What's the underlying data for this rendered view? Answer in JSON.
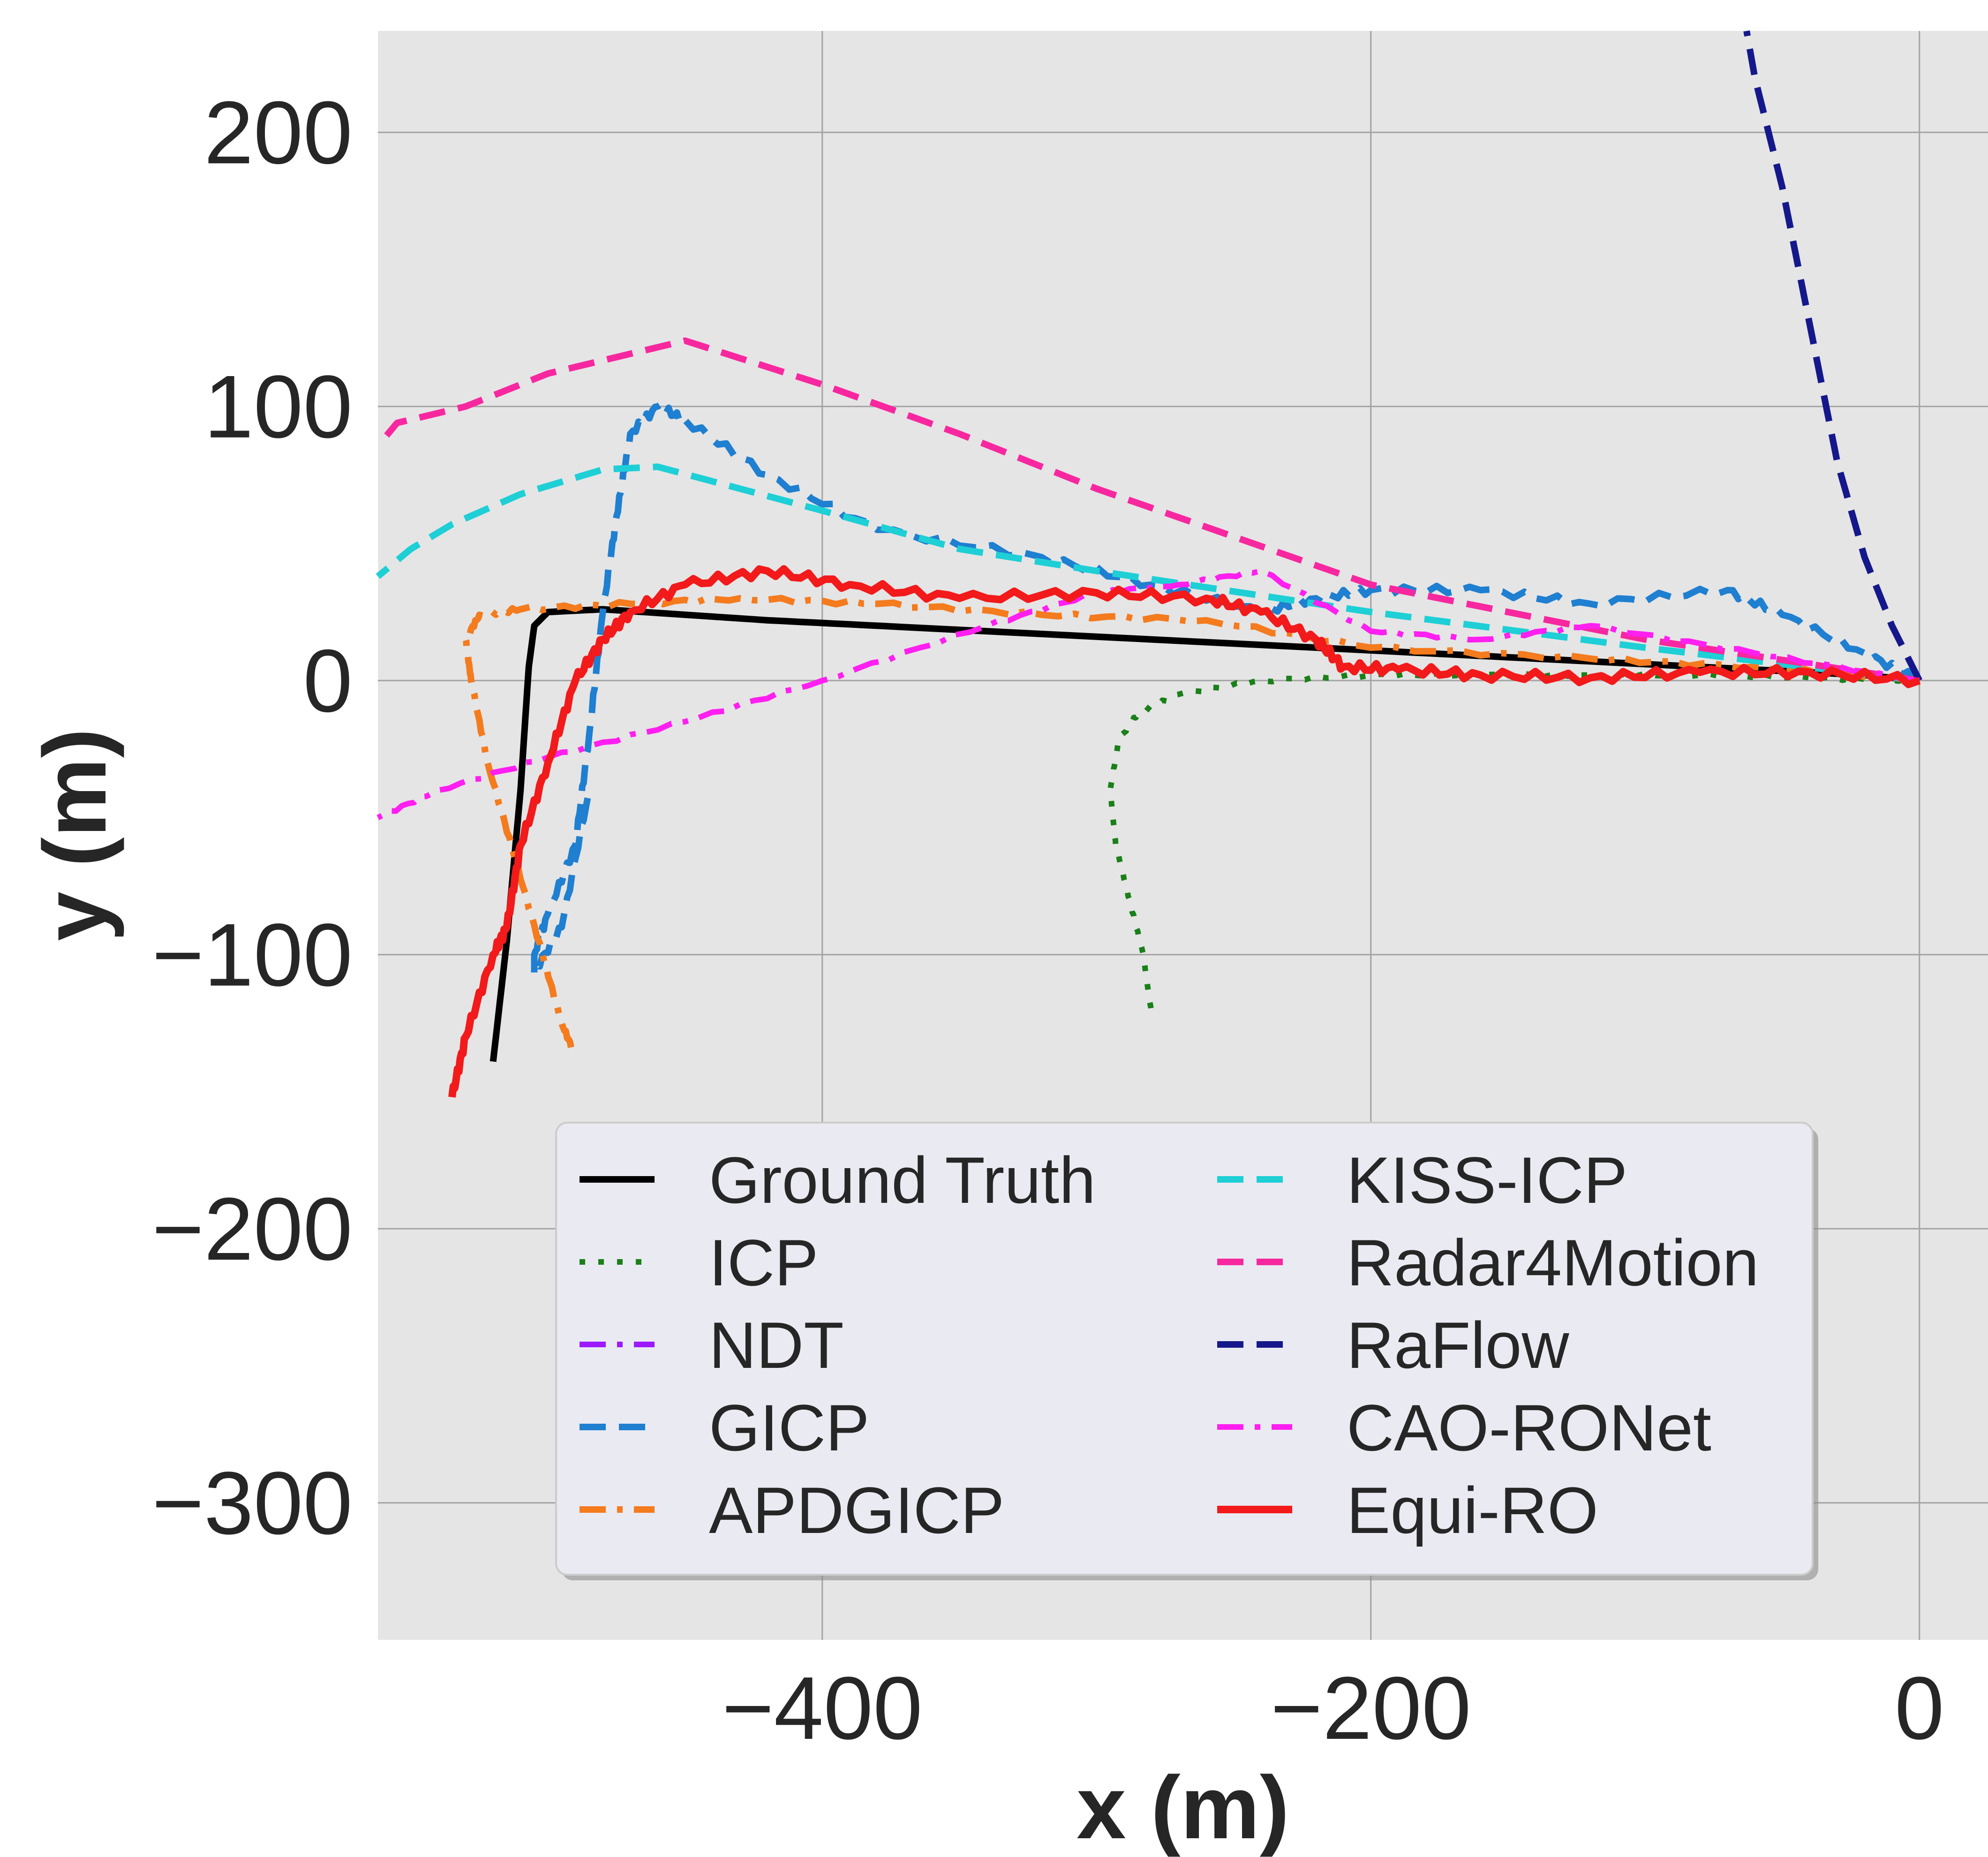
{
  "chart_data": {
    "type": "line",
    "title": "",
    "xlabel": "x (m)",
    "ylabel": "y (m)",
    "xlim": [
      -562,
      25
    ],
    "ylim": [
      -350,
      237
    ],
    "xticks": [
      {
        "value": -400,
        "label": "−400"
      },
      {
        "value": -200,
        "label": "−200"
      },
      {
        "value": 0,
        "label": "0"
      }
    ],
    "yticks": [
      {
        "value": 200,
        "label": "200"
      },
      {
        "value": 100,
        "label": "100"
      },
      {
        "value": 0,
        "label": "0"
      },
      {
        "value": -100,
        "label": "−100"
      },
      {
        "value": -200,
        "label": "−200"
      },
      {
        "value": -300,
        "label": "−300"
      }
    ],
    "grid": true,
    "background": "#e5e5e5",
    "legend_position": "lower-center",
    "legend_columns": 2,
    "series": [
      {
        "name": "Ground Truth",
        "color": "#000000",
        "style": "solid",
        "width": 14,
        "jitter": 0,
        "x": [
          0,
          -20,
          -60,
          -120,
          -180,
          -240,
          -300,
          -360,
          -420,
          -480,
          -500,
          -505,
          -507,
          -510,
          -515,
          -520
        ],
        "y": [
          0,
          2,
          4,
          7,
          10,
          13,
          16,
          19,
          22,
          26,
          25,
          20,
          5,
          -40,
          -95,
          -139
        ]
      },
      {
        "name": "ICP",
        "color": "#1a8019",
        "style": "dotted",
        "width": 12,
        "jitter": 0.6,
        "x": [
          0,
          -40,
          -80,
          -120,
          -160,
          -200,
          -240,
          -270,
          -285,
          -292,
          -295,
          -293,
          -288,
          -283,
          -280
        ],
        "y": [
          0,
          1,
          2,
          2,
          2,
          2,
          0,
          -5,
          -12,
          -22,
          -40,
          -60,
          -80,
          -100,
          -121
        ]
      },
      {
        "name": "NDT",
        "color": "#9b1aff",
        "style": "dashdot",
        "width": 12,
        "jitter": 0,
        "x": [
          0
        ],
        "y": [
          0
        ]
      },
      {
        "name": "GICP",
        "color": "#1f7fd0",
        "style": "dashed",
        "width": 14,
        "jitter": 1.5,
        "x": [
          0,
          -20,
          -50,
          -70,
          -120,
          -160,
          -200,
          -220,
          -240,
          -280,
          -320,
          -380,
          -420,
          -450,
          -460,
          -470,
          -475,
          -480,
          -485,
          -490,
          -500,
          -505,
          -505,
          -495,
          -485
        ],
        "y": [
          0,
          10,
          24,
          33,
          28,
          33,
          33,
          30,
          25,
          35,
          45,
          55,
          75,
          95,
          100,
          90,
          60,
          25,
          -20,
          -60,
          -85,
          -100,
          -106,
          -90,
          -40
        ]
      },
      {
        "name": "APDGICP",
        "color": "#f47b1e",
        "style": "dashdot",
        "width": 14,
        "jitter": 0.8,
        "x": [
          0,
          -60,
          -120,
          -200,
          -260,
          -320,
          -380,
          -430,
          -470,
          -510,
          -525,
          -530,
          -528,
          -522,
          -512,
          -502,
          -495,
          -490
        ],
        "y": [
          0,
          5,
          8,
          12,
          22,
          24,
          28,
          30,
          28,
          26,
          24,
          15,
          0,
          -30,
          -65,
          -100,
          -125,
          -137
        ]
      },
      {
        "name": "KISS-ICP",
        "color": "#1ecfd6",
        "style": "dashed",
        "width": 14,
        "jitter": 0,
        "x": [
          0,
          -100,
          -200,
          -300,
          -350,
          -400,
          -460,
          -480,
          -510,
          -535,
          -550,
          -562
        ],
        "y": [
          0,
          12,
          25,
          40,
          48,
          62,
          78,
          77,
          68,
          57,
          48,
          38
        ]
      },
      {
        "name": "Radar4Motion",
        "color": "#f7289f",
        "style": "dashed",
        "width": 14,
        "jitter": 0,
        "x": [
          0,
          -100,
          -200,
          -300,
          -350,
          -400,
          -450,
          -500,
          -530,
          -555,
          -560
        ],
        "y": [
          0,
          15,
          35,
          70,
          90,
          108,
          124,
          112,
          100,
          94,
          88
        ]
      },
      {
        "name": "RaFlow",
        "color": "#15188b",
        "style": "dashed",
        "width": 14,
        "jitter": 0,
        "x": [
          0,
          -10,
          -20,
          -30,
          -40,
          -50,
          -55,
          -60,
          -63
        ],
        "y": [
          0,
          20,
          45,
          80,
          130,
          180,
          200,
          220,
          237
        ]
      },
      {
        "name": "CAO-RONet",
        "color": "#ff1ff0",
        "style": "dashdot",
        "width": 12,
        "jitter": 0.6,
        "x": [
          0,
          -60,
          -120,
          -160,
          -200,
          -240,
          -270,
          -300,
          -340,
          -400,
          -450,
          -500,
          -540,
          -562
        ],
        "y": [
          0,
          10,
          20,
          15,
          18,
          40,
          35,
          32,
          20,
          0,
          -15,
          -28,
          -40,
          -50
        ]
      },
      {
        "name": "Equi-RO",
        "color": "#f21a1a",
        "style": "solid",
        "width": 16,
        "jitter": 1.8,
        "x": [
          0,
          -40,
          -80,
          -120,
          -160,
          -190,
          -210,
          -220,
          -240,
          -260,
          -300,
          -350,
          -390,
          -420,
          -450,
          -470,
          -480,
          -490,
          -500,
          -510,
          -515,
          -520,
          -530,
          -535
        ],
        "y": [
          0,
          3,
          3,
          1,
          2,
          4,
          5,
          15,
          25,
          30,
          32,
          30,
          35,
          40,
          35,
          25,
          15,
          0,
          -30,
          -60,
          -90,
          -100,
          -130,
          -152
        ]
      }
    ]
  }
}
